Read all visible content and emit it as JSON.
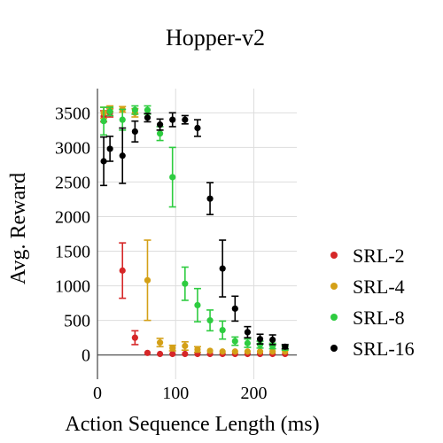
{
  "chart_data": {
    "type": "scatter",
    "title": "Hopper-v2",
    "xlabel": "Action Sequence Length (ms)",
    "ylabel": "Avg. Reward",
    "xlim": [
      0,
      255
    ],
    "ylim": [
      -350,
      3850
    ],
    "x_ticks": [
      0,
      100,
      200
    ],
    "y_ticks": [
      0,
      500,
      1000,
      1500,
      2000,
      2500,
      3000,
      3500
    ],
    "grid": true,
    "legend_position": "right",
    "series": [
      {
        "name": "SRL-2",
        "color": "#d62728",
        "x": [
          8,
          16,
          32,
          48,
          64,
          80,
          96,
          112,
          128,
          144,
          160,
          176,
          192,
          208,
          224,
          240
        ],
        "y": [
          3450,
          3500,
          1220,
          250,
          30,
          15,
          15,
          15,
          15,
          15,
          15,
          15,
          15,
          15,
          15,
          15
        ],
        "err": [
          80,
          60,
          400,
          100,
          0,
          0,
          0,
          0,
          0,
          0,
          0,
          0,
          0,
          0,
          0,
          0
        ]
      },
      {
        "name": "SRL-4",
        "color": "#d4a017",
        "x": [
          8,
          16,
          32,
          48,
          64,
          80,
          96,
          112,
          128,
          144,
          160,
          176,
          192,
          208,
          224,
          240
        ],
        "y": [
          3500,
          3560,
          3550,
          3500,
          1080,
          180,
          100,
          130,
          80,
          60,
          50,
          50,
          50,
          50,
          50,
          50
        ],
        "err": [
          80,
          40,
          40,
          60,
          580,
          60,
          40,
          60,
          40,
          0,
          0,
          0,
          0,
          0,
          0,
          0
        ]
      },
      {
        "name": "SRL-8",
        "color": "#2ecc40",
        "x": [
          8,
          16,
          32,
          48,
          64,
          80,
          96,
          112,
          128,
          144,
          160,
          176,
          192,
          208,
          224,
          240
        ],
        "y": [
          3380,
          3520,
          3400,
          3540,
          3540,
          3200,
          2570,
          1030,
          720,
          500,
          360,
          200,
          170,
          150,
          130,
          100
        ],
        "err": [
          200,
          60,
          150,
          60,
          60,
          100,
          430,
          240,
          240,
          150,
          130,
          60,
          60,
          50,
          40,
          30
        ]
      },
      {
        "name": "SRL-16",
        "color": "#000000",
        "x": [
          8,
          16,
          32,
          48,
          64,
          80,
          96,
          112,
          128,
          144,
          160,
          176,
          192,
          208,
          224,
          240
        ],
        "y": [
          2800,
          2980,
          2880,
          3230,
          3430,
          3330,
          3400,
          3400,
          3280,
          2260,
          1250,
          670,
          330,
          230,
          220,
          120
        ],
        "err": [
          350,
          180,
          400,
          150,
          60,
          80,
          100,
          60,
          120,
          230,
          410,
          180,
          80,
          70,
          70,
          30
        ]
      }
    ]
  }
}
